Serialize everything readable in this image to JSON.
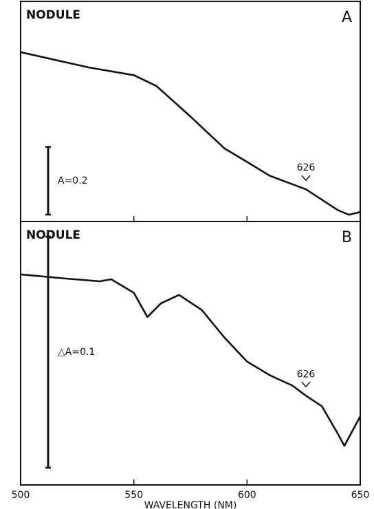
{
  "chart_data": [
    {
      "type": "line",
      "title": "NODULE",
      "panel_label": "A",
      "x": [
        500,
        530,
        550,
        560,
        575,
        590,
        600,
        610,
        626,
        640,
        645,
        650
      ],
      "values": [
        0.5,
        0.455,
        0.432,
        0.4,
        0.31,
        0.216,
        0.176,
        0.135,
        0.095,
        0.034,
        0.02,
        0.028
      ],
      "color": "#111111",
      "xlim": [
        500,
        650
      ],
      "xticks": [
        500,
        550,
        600,
        650
      ],
      "ylim": [
        0,
        0.65
      ],
      "scale_bar": {
        "label": "A=0.2",
        "value": 0.2
      },
      "annotation": {
        "text": "626",
        "x": 626
      }
    },
    {
      "type": "line",
      "title": "NODULE",
      "panel_label": "B",
      "x": [
        500,
        520,
        535,
        540,
        550,
        556,
        562,
        570,
        580,
        590,
        600,
        610,
        620,
        626,
        633,
        640,
        643,
        650
      ],
      "values": [
        0.0911,
        0.0893,
        0.0881,
        0.089,
        0.0831,
        0.0727,
        0.0786,
        0.0822,
        0.0757,
        0.0638,
        0.0534,
        0.0475,
        0.043,
        0.0386,
        0.0341,
        0.0223,
        0.0169,
        0.0297
      ],
      "color": "#111111",
      "xlim": [
        500,
        650
      ],
      "xticks": [
        500,
        550,
        600,
        650
      ],
      "ylim": [
        0,
        0.114
      ],
      "xlabel": "WAVELENGTH (NM)",
      "scale_bar": {
        "label": "△A=0.1",
        "value": 0.1
      },
      "annotation": {
        "text": "626",
        "x": 626
      }
    }
  ]
}
